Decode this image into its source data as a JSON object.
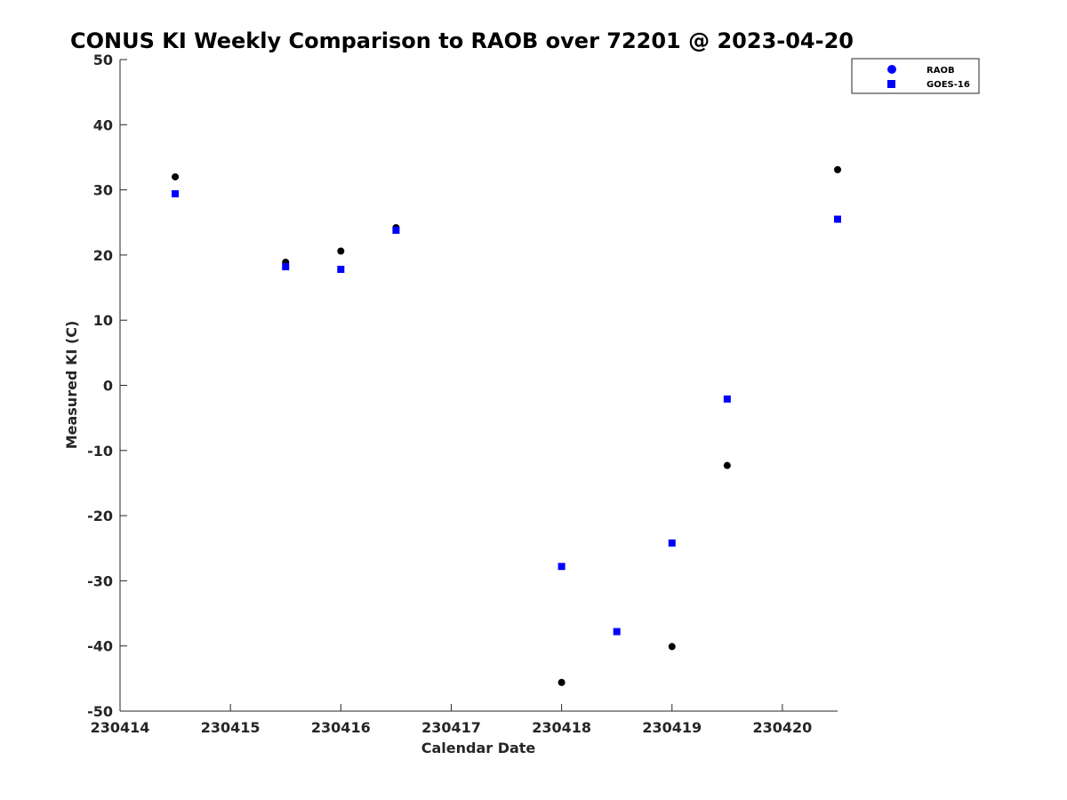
{
  "chart_data": {
    "type": "scatter",
    "title": "CONUS KI Weekly Comparison to RAOB over 72201 @ 2023-04-20",
    "xlabel": "Calendar Date",
    "ylabel": "Measured KI (C)",
    "x_ticks": [
      230414,
      230415,
      230416,
      230417,
      230418,
      230419,
      230420
    ],
    "y_ticks": [
      50,
      40,
      30,
      20,
      10,
      0,
      -10,
      -20,
      -30,
      -40,
      -50
    ],
    "xlim": [
      230414,
      230420.5
    ],
    "ylim": [
      -50,
      50
    ],
    "grid": false,
    "legend_position": "top-right",
    "series": [
      {
        "name": "RAOB",
        "marker": "circle",
        "color": "#000000",
        "legend_color": "#0000ff",
        "x": [
          230414.5,
          230415.5,
          230416,
          230416.5,
          230418,
          230419,
          230419.5,
          230420.5
        ],
        "values": [
          32.0,
          18.9,
          20.6,
          24.2,
          -45.6,
          -40.1,
          -12.3,
          33.1
        ]
      },
      {
        "name": "GOES-16",
        "marker": "square",
        "color": "#0000ff",
        "legend_color": "#0000ff",
        "x": [
          230414.5,
          230415.5,
          230416,
          230416.5,
          230418,
          230418.5,
          230419,
          230419.5,
          230420.5
        ],
        "values": [
          29.4,
          18.2,
          17.8,
          23.8,
          -27.8,
          -37.8,
          -24.2,
          -2.1,
          25.5
        ]
      }
    ]
  }
}
